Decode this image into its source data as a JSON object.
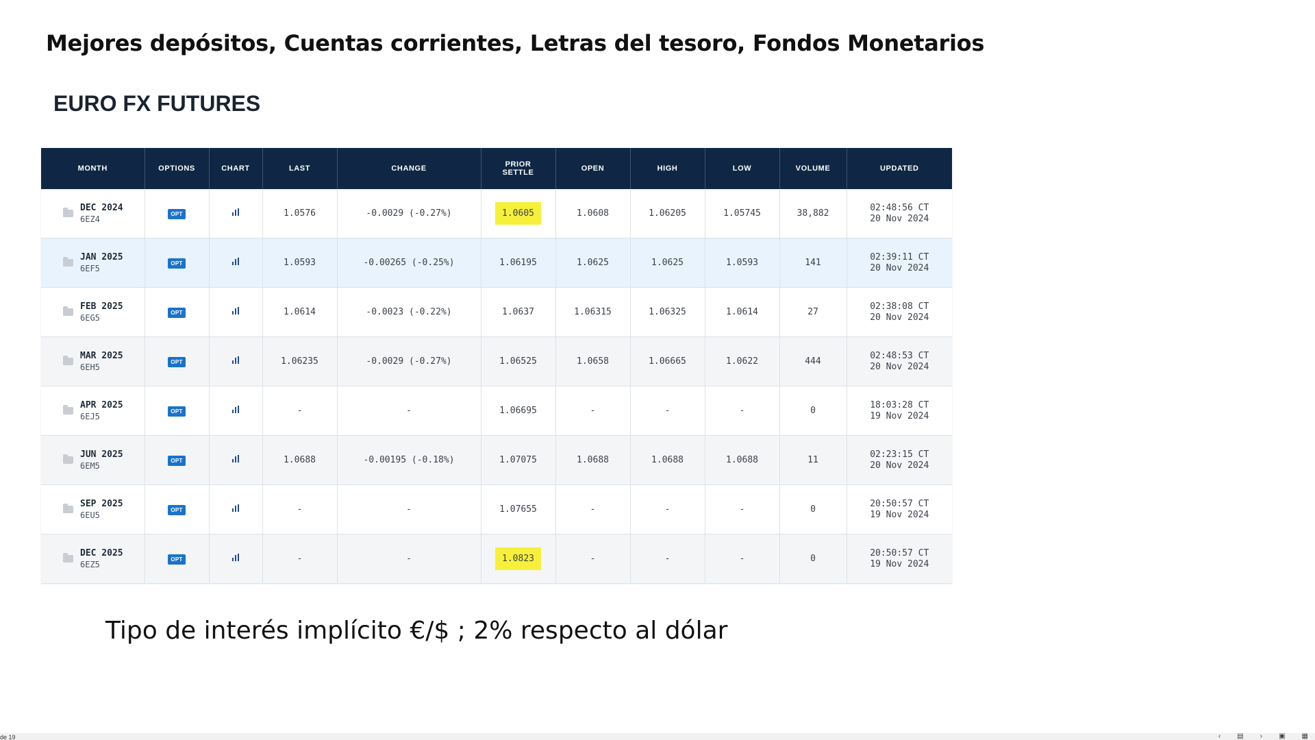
{
  "slide": {
    "title": "Mejores depósitos, Cuentas corrientes, Letras del tesoro, Fondos Monetarios",
    "section_title": "EURO FX FUTURES",
    "subtitle": "Tipo de interés implícito €/$ ; 2% respecto al dólar"
  },
  "table": {
    "headers": {
      "month": "MONTH",
      "options": "OPTIONS",
      "chart": "CHART",
      "last": "LAST",
      "change": "CHANGE",
      "prior_settle_1": "PRIOR",
      "prior_settle_2": "SETTLE",
      "open": "OPEN",
      "high": "HIGH",
      "low": "LOW",
      "volume": "VOLUME",
      "updated": "UPDATED"
    },
    "opt_label": "OPT",
    "rows": [
      {
        "month": "DEC 2024",
        "code": "6EZ4",
        "last": "1.0576",
        "change": "-0.0029 (-0.27%)",
        "prior_settle": "1.0605",
        "open": "1.0608",
        "high": "1.06205",
        "low": "1.05745",
        "volume": "38,882",
        "updated_time": "02:48:56 CT",
        "updated_date": "20 Nov 2024"
      },
      {
        "month": "JAN 2025",
        "code": "6EF5",
        "last": "1.0593",
        "change": "-0.00265 (-0.25%)",
        "prior_settle": "1.06195",
        "open": "1.0625",
        "high": "1.0625",
        "low": "1.0593",
        "volume": "141",
        "updated_time": "02:39:11 CT",
        "updated_date": "20 Nov 2024"
      },
      {
        "month": "FEB 2025",
        "code": "6EG5",
        "last": "1.0614",
        "change": "-0.0023 (-0.22%)",
        "prior_settle": "1.0637",
        "open": "1.06315",
        "high": "1.06325",
        "low": "1.0614",
        "volume": "27",
        "updated_time": "02:38:08 CT",
        "updated_date": "20 Nov 2024"
      },
      {
        "month": "MAR 2025",
        "code": "6EH5",
        "last": "1.06235",
        "change": "-0.0029 (-0.27%)",
        "prior_settle": "1.06525",
        "open": "1.0658",
        "high": "1.06665",
        "low": "1.0622",
        "volume": "444",
        "updated_time": "02:48:53 CT",
        "updated_date": "20 Nov 2024"
      },
      {
        "month": "APR 2025",
        "code": "6EJ5",
        "last": "-",
        "change": "-",
        "prior_settle": "1.06695",
        "open": "-",
        "high": "-",
        "low": "-",
        "volume": "0",
        "updated_time": "18:03:28 CT",
        "updated_date": "19 Nov 2024"
      },
      {
        "month": "JUN 2025",
        "code": "6EM5",
        "last": "1.0688",
        "change": "-0.00195 (-0.18%)",
        "prior_settle": "1.07075",
        "open": "1.0688",
        "high": "1.0688",
        "low": "1.0688",
        "volume": "11",
        "updated_time": "02:23:15 CT",
        "updated_date": "20 Nov 2024"
      },
      {
        "month": "SEP 2025",
        "code": "6EU5",
        "last": "-",
        "change": "-",
        "prior_settle": "1.07655",
        "open": "-",
        "high": "-",
        "low": "-",
        "volume": "0",
        "updated_time": "20:50:57 CT",
        "updated_date": "19 Nov 2024"
      },
      {
        "month": "DEC 2025",
        "code": "6EZ5",
        "last": "-",
        "change": "-",
        "prior_settle": "1.0823",
        "open": "-",
        "high": "-",
        "low": "-",
        "volume": "0",
        "updated_time": "20:50:57 CT",
        "updated_date": "19 Nov 2024"
      }
    ]
  },
  "footer": {
    "page_indicator": "de 19",
    "icons": [
      "chevron-left-icon",
      "notes-icon",
      "chevron-right-icon",
      "normal-view-icon",
      "slide-sorter-icon"
    ]
  },
  "colors": {
    "header_bg": "#0f2744",
    "negative_change": "#d0392b",
    "opt_badge": "#1a73c9",
    "highlight": "#f7f03a",
    "selected_row": "#e8f3fd"
  }
}
